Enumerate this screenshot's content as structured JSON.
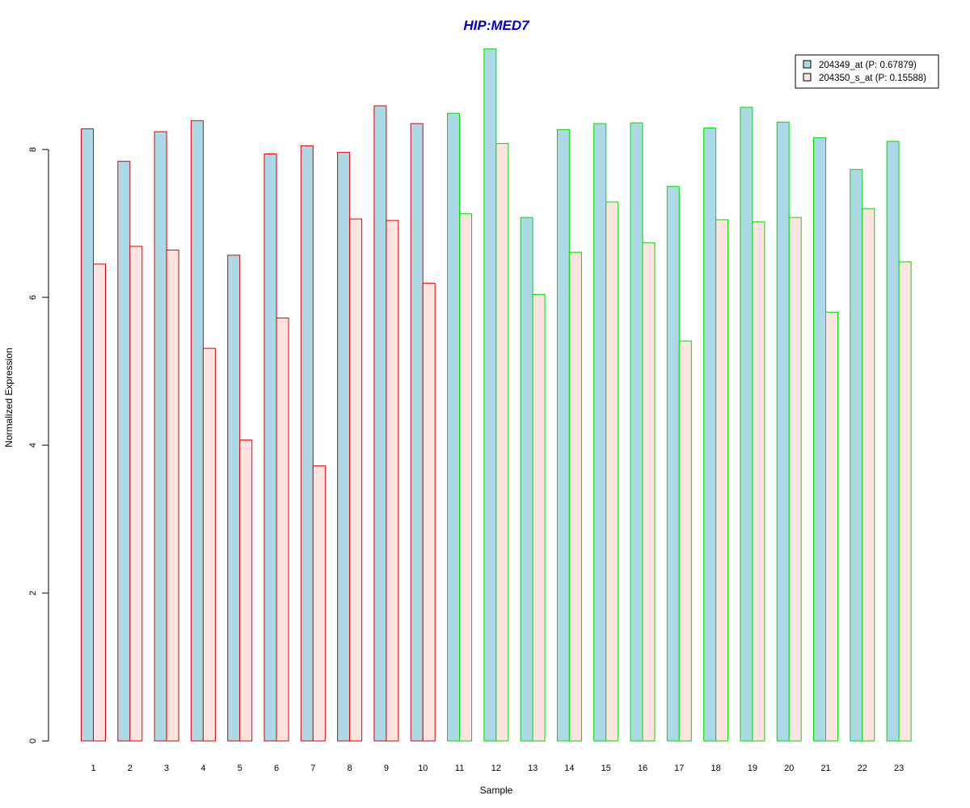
{
  "chart_data": {
    "type": "bar",
    "title": "HIP:MED7",
    "xlabel": "Sample",
    "ylabel": "Normalized Expression",
    "ylim": [
      0,
      9.4
    ],
    "y_ticks": [
      0,
      2,
      4,
      6,
      8
    ],
    "categories": [
      "1",
      "2",
      "3",
      "4",
      "5",
      "6",
      "7",
      "8",
      "9",
      "10",
      "11",
      "12",
      "13",
      "14",
      "15",
      "16",
      "17",
      "18",
      "19",
      "20",
      "21",
      "22",
      "23"
    ],
    "group_border_colors": [
      "#dd0000",
      "#dd0000",
      "#dd0000",
      "#dd0000",
      "#dd0000",
      "#dd0000",
      "#dd0000",
      "#dd0000",
      "#dd0000",
      "#dd0000",
      "#00dd00",
      "#00dd00",
      "#00dd00",
      "#00dd00",
      "#00dd00",
      "#00dd00",
      "#00dd00",
      "#00dd00",
      "#00dd00",
      "#00dd00",
      "#00dd00",
      "#00dd00",
      "#00dd00"
    ],
    "series": [
      {
        "name": "204349_at (P: 0.67879)",
        "fill": "#add8e6",
        "values": [
          8.28,
          7.84,
          8.24,
          8.39,
          6.57,
          7.94,
          8.05,
          7.96,
          8.59,
          8.35,
          8.49,
          9.36,
          7.08,
          8.27,
          8.35,
          8.36,
          7.5,
          8.29,
          8.57,
          8.37,
          8.16,
          7.73,
          8.11
        ]
      },
      {
        "name": "204350_s_at (P: 0.15588)",
        "fill": "#fde4e0",
        "values": [
          6.45,
          6.69,
          6.64,
          5.31,
          4.07,
          5.72,
          3.72,
          7.06,
          7.04,
          6.19,
          7.13,
          8.08,
          6.04,
          6.61,
          7.29,
          6.74,
          5.41,
          7.05,
          7.02,
          7.08,
          5.8,
          7.2,
          6.48
        ]
      }
    ],
    "title_color": "#0000cc",
    "legend_position": "top-right",
    "grid": false
  }
}
